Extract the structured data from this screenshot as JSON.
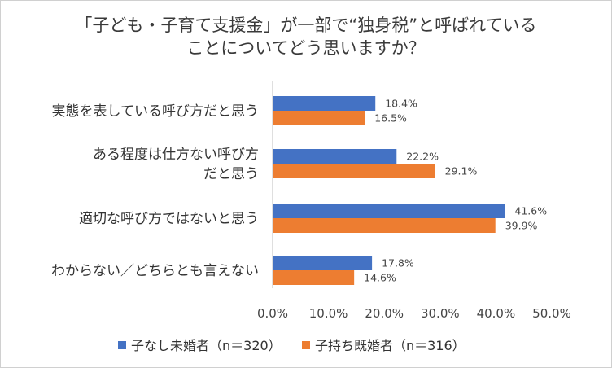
{
  "chart_data": {
    "type": "bar",
    "orientation": "horizontal",
    "title": [
      "「子ども・子育て支援金」が一部で“独身税”と呼ばれている",
      "ことについてどう思いますか？"
    ],
    "categories": [
      [
        "実態を表している呼び方だと思う"
      ],
      [
        "ある程度は仕方ない呼び方",
        "だと思う"
      ],
      [
        "適切な呼び方ではないと思う"
      ],
      [
        "わからない／どちらとも言えない"
      ]
    ],
    "series": [
      {
        "name": "子なし未婚者（n＝320）",
        "color": "#4472C4",
        "values": [
          18.4,
          22.2,
          41.6,
          17.8
        ],
        "labels": [
          "18.4%",
          "22.2%",
          "41.6%",
          "17.8%"
        ]
      },
      {
        "name": "子持ち既婚者（n＝316）",
        "color": "#ED7D31",
        "values": [
          16.5,
          29.1,
          39.9,
          14.6
        ],
        "labels": [
          "16.5%",
          "29.1%",
          "39.9%",
          "14.6%"
        ]
      }
    ],
    "xlim": [
      0,
      50
    ],
    "xticks": [
      "0.0%",
      "10.0%",
      "20.0%",
      "30.0%",
      "40.0%",
      "50.0%"
    ],
    "grid": false,
    "legend_position": "bottom"
  }
}
